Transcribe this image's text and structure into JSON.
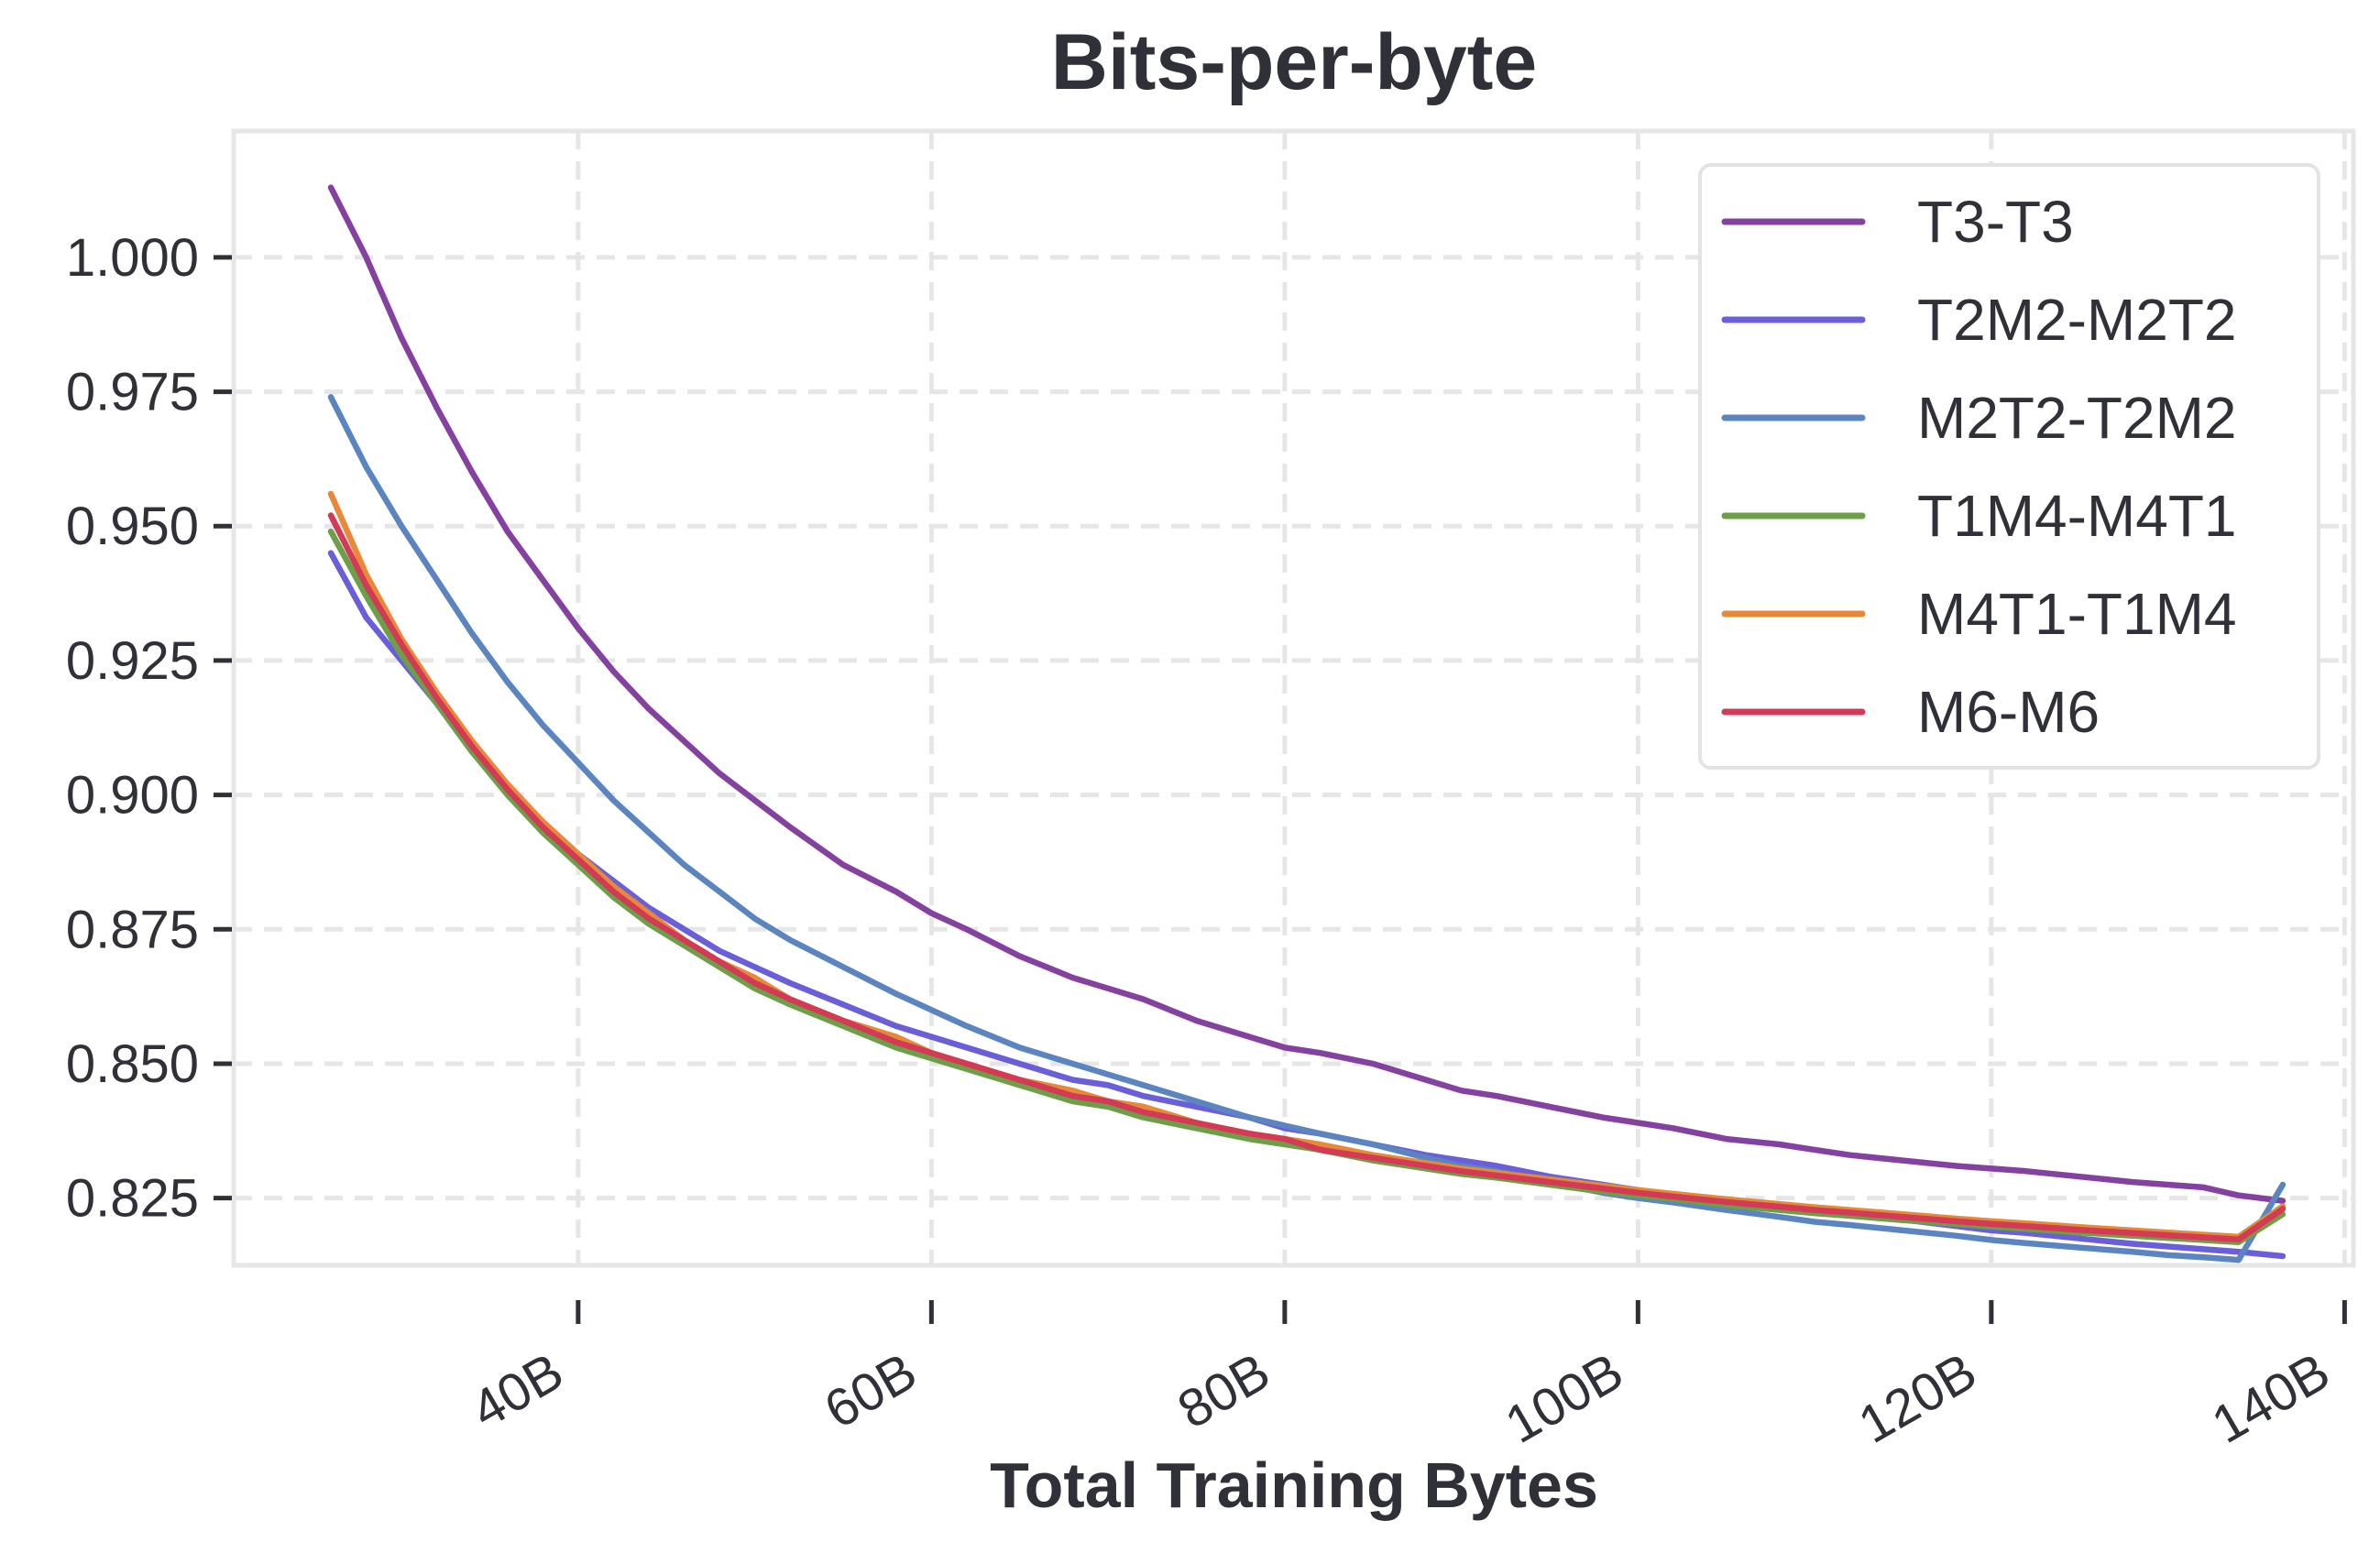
{
  "chart_data": {
    "type": "line",
    "title": "Bits-per-byte",
    "xlabel": "Total Training Bytes",
    "ylabel": "",
    "xlim": [
      20.5,
      140.5
    ],
    "ylim": [
      0.8125,
      1.0235
    ],
    "x_unit": "B",
    "xticks": [
      40,
      60,
      80,
      100,
      120,
      140
    ],
    "xtick_labels": [
      "40B",
      "60B",
      "80B",
      "100B",
      "120B",
      "140B"
    ],
    "yticks": [
      0.825,
      0.85,
      0.875,
      0.9,
      0.925,
      0.95,
      0.975,
      1.0
    ],
    "ytick_labels": [
      "0.825",
      "0.850",
      "0.875",
      "0.900",
      "0.925",
      "0.950",
      "0.975",
      "1.000"
    ],
    "grid": true,
    "legend_position": "top-right",
    "x": [
      26,
      28,
      30,
      32,
      34,
      36,
      38,
      40,
      42,
      44,
      46,
      48,
      50,
      52,
      55,
      58,
      60,
      62,
      65,
      68,
      70,
      72,
      75,
      78,
      80,
      82,
      85,
      88,
      90,
      92,
      95,
      98,
      100,
      102,
      105,
      108,
      110,
      112,
      115,
      118,
      120,
      122,
      125,
      128,
      130,
      132,
      134,
      136.5
    ],
    "series": [
      {
        "name": "T3-T3",
        "color": "#8441a0",
        "values": [
          1.013,
          1.0,
          0.985,
          0.972,
          0.96,
          0.949,
          0.94,
          0.931,
          0.923,
          0.916,
          0.91,
          0.904,
          0.899,
          0.894,
          0.887,
          0.882,
          0.878,
          0.875,
          0.87,
          0.866,
          0.864,
          0.862,
          0.858,
          0.855,
          0.853,
          0.852,
          0.85,
          0.847,
          0.845,
          0.844,
          0.842,
          0.84,
          0.839,
          0.838,
          0.836,
          0.835,
          0.834,
          0.833,
          0.832,
          0.831,
          0.8305,
          0.83,
          0.829,
          0.828,
          0.8275,
          0.827,
          0.8255,
          0.8245
        ]
      },
      {
        "name": "T2M2-M2T2",
        "color": "#6a5fd8",
        "values": [
          0.945,
          0.933,
          0.925,
          0.917,
          0.908,
          0.901,
          0.895,
          0.889,
          0.884,
          0.879,
          0.875,
          0.871,
          0.868,
          0.865,
          0.861,
          0.857,
          0.855,
          0.853,
          0.85,
          0.847,
          0.846,
          0.844,
          0.842,
          0.84,
          0.838,
          0.837,
          0.835,
          0.833,
          0.832,
          0.831,
          0.829,
          0.8275,
          0.8265,
          0.8255,
          0.824,
          0.823,
          0.8225,
          0.822,
          0.821,
          0.8198,
          0.819,
          0.8185,
          0.8175,
          0.8165,
          0.816,
          0.8155,
          0.815,
          0.8142
        ]
      },
      {
        "name": "M2T2-T2M2",
        "color": "#5b85c0",
        "values": [
          0.974,
          0.961,
          0.95,
          0.94,
          0.93,
          0.921,
          0.913,
          0.906,
          0.899,
          0.893,
          0.887,
          0.882,
          0.877,
          0.873,
          0.868,
          0.863,
          0.86,
          0.857,
          0.853,
          0.85,
          0.848,
          0.846,
          0.843,
          0.84,
          0.8385,
          0.837,
          0.835,
          0.8325,
          0.831,
          0.83,
          0.828,
          0.826,
          0.825,
          0.8242,
          0.8228,
          0.8215,
          0.8206,
          0.82,
          0.819,
          0.818,
          0.8172,
          0.8166,
          0.8158,
          0.815,
          0.8144,
          0.814,
          0.8135,
          0.8275
        ]
      },
      {
        "name": "T1M4-M4T1",
        "color": "#6d9e48",
        "values": [
          0.949,
          0.937,
          0.926,
          0.917,
          0.908,
          0.9,
          0.893,
          0.887,
          0.881,
          0.876,
          0.872,
          0.868,
          0.864,
          0.861,
          0.857,
          0.853,
          0.851,
          0.849,
          0.846,
          0.843,
          0.842,
          0.84,
          0.838,
          0.836,
          0.835,
          0.834,
          0.832,
          0.8305,
          0.8295,
          0.8288,
          0.8275,
          0.8262,
          0.8255,
          0.8248,
          0.8237,
          0.8228,
          0.8222,
          0.8217,
          0.8209,
          0.8202,
          0.8197,
          0.8193,
          0.8186,
          0.818,
          0.8176,
          0.8172,
          0.8168,
          0.822
        ]
      },
      {
        "name": "M4T1-T1M4",
        "color": "#e8893a",
        "values": [
          0.956,
          0.941,
          0.929,
          0.919,
          0.91,
          0.902,
          0.895,
          0.889,
          0.883,
          0.878,
          0.873,
          0.869,
          0.866,
          0.862,
          0.858,
          0.855,
          0.852,
          0.85,
          0.847,
          0.845,
          0.843,
          0.842,
          0.839,
          0.837,
          0.836,
          0.835,
          0.833,
          0.8315,
          0.8305,
          0.8297,
          0.8285,
          0.8273,
          0.8265,
          0.8258,
          0.8248,
          0.8239,
          0.8233,
          0.8228,
          0.822,
          0.8212,
          0.8207,
          0.8203,
          0.8196,
          0.819,
          0.8186,
          0.8182,
          0.8178,
          0.8235
        ]
      },
      {
        "name": "M6-M6",
        "color": "#d23a55",
        "values": [
          0.952,
          0.939,
          0.928,
          0.918,
          0.909,
          0.901,
          0.894,
          0.888,
          0.882,
          0.877,
          0.873,
          0.869,
          0.865,
          0.862,
          0.858,
          0.854,
          0.852,
          0.85,
          0.847,
          0.844,
          0.843,
          0.841,
          0.839,
          0.837,
          0.836,
          0.834,
          0.8325,
          0.831,
          0.83,
          0.8292,
          0.828,
          0.8268,
          0.826,
          0.8253,
          0.8243,
          0.8234,
          0.8228,
          0.8223,
          0.8215,
          0.8207,
          0.8202,
          0.8198,
          0.8191,
          0.8185,
          0.8181,
          0.8177,
          0.8173,
          0.823
        ]
      }
    ]
  }
}
